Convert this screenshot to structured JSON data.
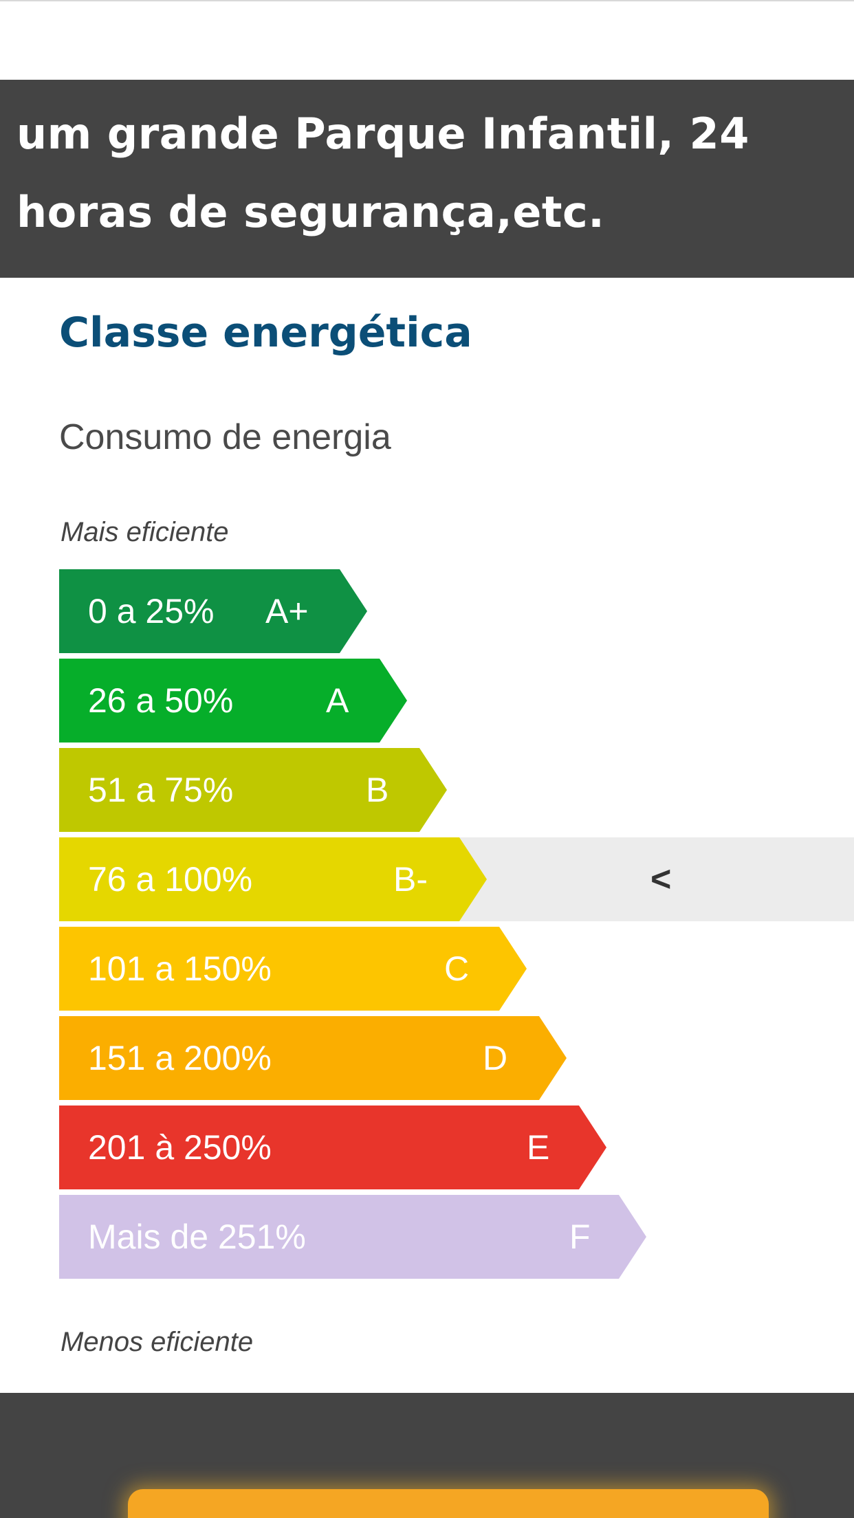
{
  "description": {
    "line1": "um grande Parque Infantil, 24",
    "line2": "horas de segurança,etc."
  },
  "energy": {
    "title": "Classe energética",
    "subtitle": "Consumo de energia",
    "top_label": "Mais eficiente",
    "bottom_label": "Menos eficiente",
    "current_class": "B-",
    "current_marker": "<",
    "ratings": [
      {
        "range": "0 a 25%",
        "class": "A+",
        "color": "#0f9144"
      },
      {
        "range": "26 a 50%",
        "class": "A",
        "color": "#06ae2a"
      },
      {
        "range": "51 a 75%",
        "class": "B",
        "color": "#bfc800"
      },
      {
        "range": "76 a 100%",
        "class": "B-",
        "color": "#e5d700"
      },
      {
        "range": "101 a 150%",
        "class": "C",
        "color": "#fdc500"
      },
      {
        "range": "151 a 200%",
        "class": "D",
        "color": "#fbae00"
      },
      {
        "range": "201 à 250%",
        "class": "E",
        "color": "#e8352b"
      },
      {
        "range": "Mais de 251%",
        "class": "F",
        "color": "#d1c2e7"
      }
    ]
  },
  "footer": {
    "cta_color": "#f5a623"
  }
}
